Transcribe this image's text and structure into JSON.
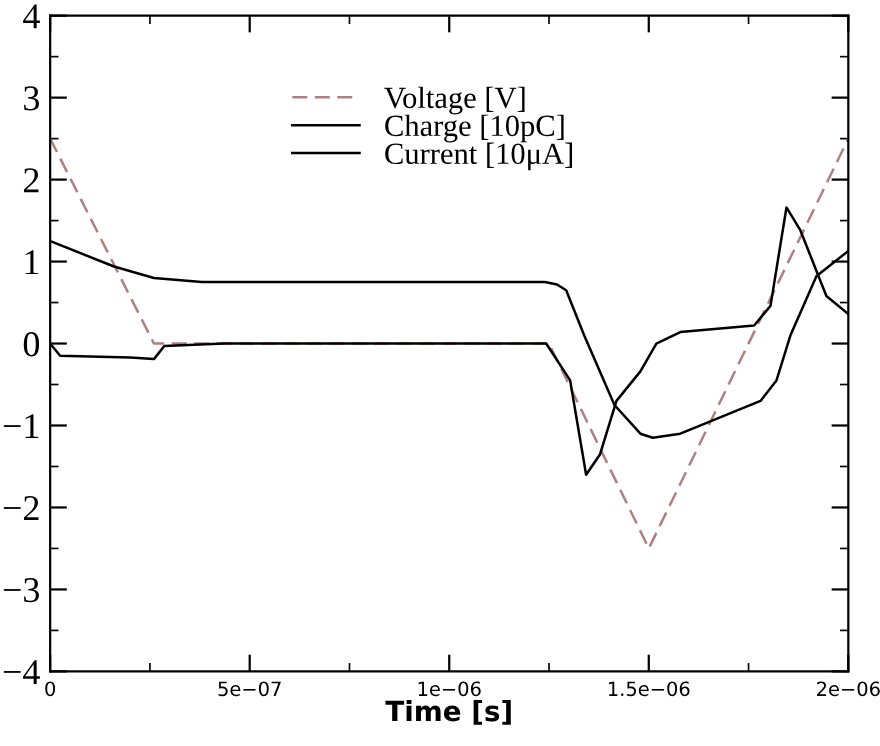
{
  "chart_data": {
    "type": "line",
    "xlabel": "Time [s]",
    "xlim": [
      0,
      2e-06
    ],
    "ylim": [
      -4,
      4
    ],
    "xticks": [
      0,
      {
        "value": 5e-07,
        "label": "5e−07"
      },
      {
        "value": 1e-06,
        "label": "1e−06"
      },
      {
        "value": 1.5e-06,
        "label": "1.5e−06"
      },
      {
        "value": 2e-06,
        "label": "2e−06"
      }
    ],
    "yticks": [
      -4,
      -3,
      -2,
      -1,
      0,
      1,
      2,
      3,
      4
    ],
    "grid": false,
    "legend": "top",
    "marker": "none",
    "series": [
      {
        "name": "Voltage [V]",
        "color": "#b08080",
        "line_style": "dashed",
        "x": [
          0,
          2.6e-07,
          1.25e-06,
          1.5e-06,
          2e-06
        ],
        "values": [
          2.5,
          0,
          0,
          -2.5,
          2.5
        ]
      },
      {
        "name": "Charge [10pC]",
        "color": "#000000",
        "line_style": "solid",
        "x": [
          0,
          1e-08,
          1.6e-07,
          2.6e-07,
          3.8e-07,
          1.24e-06,
          1.27e-06,
          1.293e-06,
          1.338e-06,
          1.414e-06,
          1.479e-06,
          1.51e-06,
          1.579e-06,
          1.78e-06,
          1.82e-06,
          1.855e-06,
          1.92e-06,
          2e-06
        ],
        "values": [
          1.25,
          1.23,
          0.94,
          0.8,
          0.75,
          0.75,
          0.72,
          0.65,
          0.1,
          -0.75,
          -1.1,
          -1.15,
          -1.1,
          -0.7,
          -0.45,
          0.1,
          0.82,
          1.13
        ]
      },
      {
        "name": "Current [10μA]",
        "color": "#000000",
        "line_style": "solid",
        "x": [
          0,
          2.5e-08,
          2e-07,
          2.6e-07,
          2.86e-07,
          4.36e-07,
          1.243e-06,
          1.303e-06,
          1.343e-06,
          1.378e-06,
          1.419e-06,
          1.479e-06,
          1.519e-06,
          1.579e-06,
          1.764e-06,
          1.805e-06,
          1.845e-06,
          1.88e-06,
          1.945e-06,
          2e-06
        ],
        "values": [
          0,
          -0.15,
          -0.17,
          -0.19,
          -0.03,
          0,
          0,
          -0.45,
          -1.6,
          -1.35,
          -0.7,
          -0.34,
          0,
          0.14,
          0.22,
          0.46,
          1.66,
          1.38,
          0.58,
          0.36
        ]
      }
    ]
  }
}
